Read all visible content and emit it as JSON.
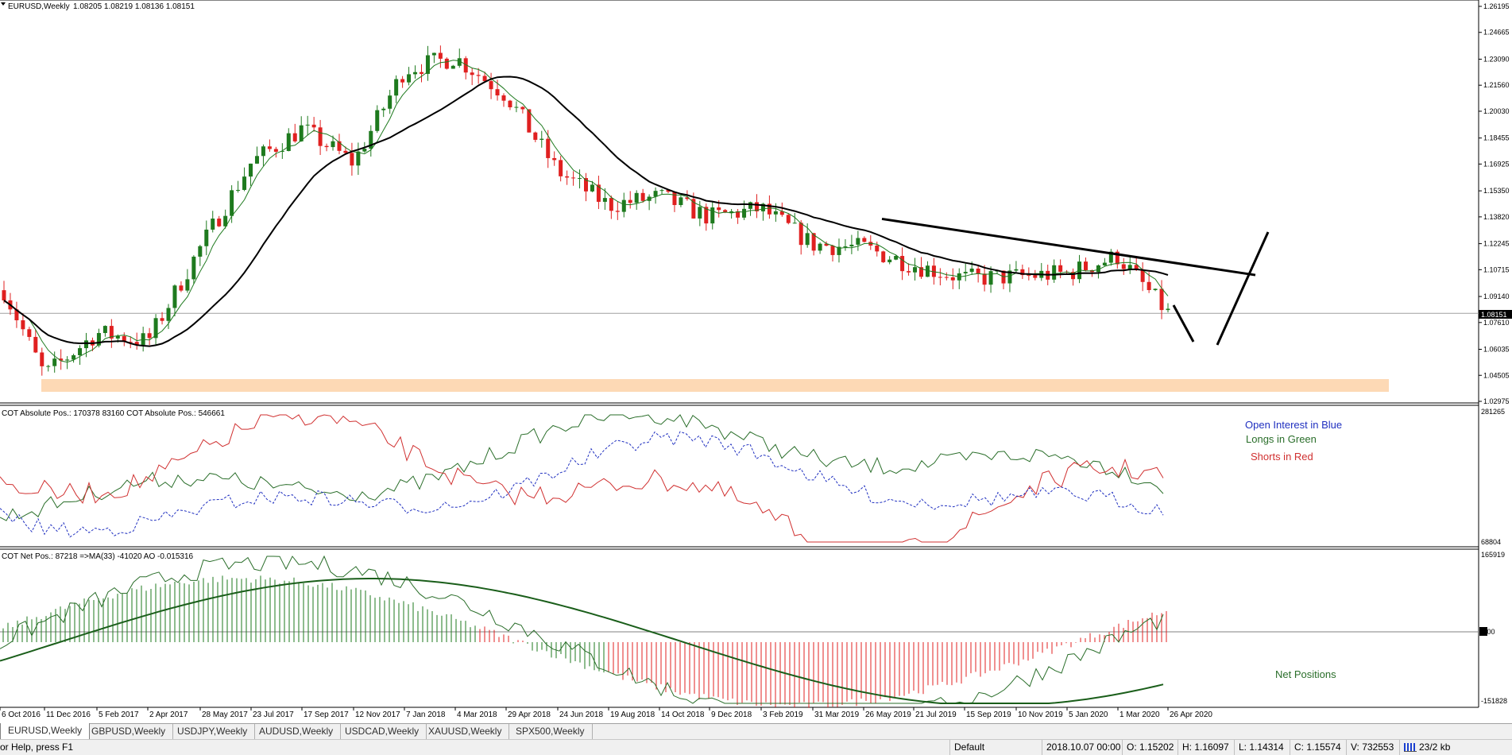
{
  "window": {
    "symbol_header": "EURUSD,Weekly",
    "ohlc_header": "1.08205 1.08219 1.08136 1.08151",
    "current_price_label": "1.08151"
  },
  "colors": {
    "bull": "#1e7a1e",
    "bear": "#e02020",
    "ma_fast": "#1e7a1e",
    "ma_slow": "#000000",
    "support_zone": "#fdd9b5",
    "longs": "#2a6e2a",
    "shorts": "#d03030",
    "open_interest": "#2030c0"
  },
  "main_axis": {
    "labels": [
      "1.26195",
      "1.24665",
      "1.23090",
      "1.21560",
      "1.20030",
      "1.18455",
      "1.16925",
      "1.15350",
      "1.13820",
      "1.12245",
      "1.10715",
      "1.09140",
      "1.07610",
      "1.06035",
      "1.04505",
      "1.02975"
    ]
  },
  "x_axis": {
    "labels": [
      "6 Oct 2016",
      "11 Dec 2016",
      "5 Feb 2017",
      "2 Apr 2017",
      "28 May 2017",
      "23 Jul 2017",
      "17 Sep 2017",
      "12 Nov 2017",
      "7 Jan 2018",
      "4 Mar 2018",
      "29 Apr 2018",
      "24 Jun 2018",
      "19 Aug 2018",
      "14 Oct 2018",
      "9 Dec 2018",
      "3 Feb 2019",
      "31 Mar 2019",
      "26 May 2019",
      "21 Jul 2019",
      "15 Sep 2019",
      "10 Nov 2019",
      "5 Jan 2020",
      "1 Mar 2020",
      "26 Apr 2020"
    ]
  },
  "cot_abs": {
    "header": "COT Absolute Pos.: 170378 83160  COT Absolute Pos.: 546661",
    "axis_top": "281265",
    "axis_bottom": "68804",
    "legend": {
      "open_interest": "Open Interest in Blue",
      "longs": "Longs in Green",
      "shorts": "Shorts in Red"
    }
  },
  "cot_net": {
    "header": "COT Net Pos.: 87218  =>MA(33) -41020  AO -0.015316",
    "axis_top": "165919",
    "axis_zero": "0.00",
    "axis_bottom": "-151828",
    "caption": "Net Positions"
  },
  "tabs": [
    "EURUSD,Weekly",
    "GBPUSD,Weekly",
    "USDJPY,Weekly",
    "AUDUSD,Weekly",
    "USDCAD,Weekly",
    "XAUUSD,Weekly",
    "SPX500,Weekly"
  ],
  "status": {
    "help": "or Help, press F1",
    "profile": "Default",
    "time": "2018.10.07 00:00",
    "open": "O: 1.15202",
    "high": "H: 1.16097",
    "low": "L: 1.14314",
    "close": "C: 1.15574",
    "volume": "V: 732553",
    "traffic": "23/2 kb"
  },
  "chart_data": [
    {
      "type": "candlestick",
      "title": "EURUSD,Weekly",
      "x_range": [
        "6 Oct 2016",
        "26 Apr 2020"
      ],
      "ylim": [
        1.02975,
        1.26195
      ],
      "approx_close_path": [
        {
          "x": "6 Oct 2016",
          "y": 1.1
        },
        {
          "x": "11 Dec 2016",
          "y": 1.045
        },
        {
          "x": "5 Feb 2017",
          "y": 1.07
        },
        {
          "x": "2 Apr 2017",
          "y": 1.065
        },
        {
          "x": "28 May 2017",
          "y": 1.12
        },
        {
          "x": "23 Jul 2017",
          "y": 1.17
        },
        {
          "x": "17 Sep 2017",
          "y": 1.19
        },
        {
          "x": "12 Nov 2017",
          "y": 1.17
        },
        {
          "x": "7 Jan 2018",
          "y": 1.225
        },
        {
          "x": "4 Mar 2018",
          "y": 1.232
        },
        {
          "x": "29 Apr 2018",
          "y": 1.21
        },
        {
          "x": "24 Jun 2018",
          "y": 1.165
        },
        {
          "x": "19 Aug 2018",
          "y": 1.145
        },
        {
          "x": "14 Oct 2018",
          "y": 1.15
        },
        {
          "x": "9 Dec 2018",
          "y": 1.138
        },
        {
          "x": "3 Feb 2019",
          "y": 1.143
        },
        {
          "x": "31 Mar 2019",
          "y": 1.122
        },
        {
          "x": "26 May 2019",
          "y": 1.12
        },
        {
          "x": "21 Jul 2019",
          "y": 1.11
        },
        {
          "x": "15 Sep 2019",
          "y": 1.102
        },
        {
          "x": "10 Nov 2019",
          "y": 1.103
        },
        {
          "x": "5 Jan 2020",
          "y": 1.105
        },
        {
          "x": "1 Mar 2020",
          "y": 1.115
        },
        {
          "x": "26 Apr 2020",
          "y": 1.0815
        }
      ],
      "current_price": 1.08151,
      "support_zone": [
        1.04,
        1.046
      ],
      "trendline": [
        {
          "x": "26 May 2019",
          "y": 1.137
        },
        {
          "x": "26 Apr 2020",
          "y": 1.104
        }
      ]
    },
    {
      "type": "line",
      "series": [
        {
          "name": "Open Interest in Blue",
          "style": "dashed"
        },
        {
          "name": "Longs in Green"
        },
        {
          "name": "Shorts in Red"
        }
      ],
      "ylim": [
        68804,
        281265
      ]
    },
    {
      "type": "bar",
      "ylim": [
        -151828,
        165919
      ],
      "last_values": {
        "net": 87218,
        "ma33": -41020,
        "ao": -0.015316
      }
    }
  ]
}
